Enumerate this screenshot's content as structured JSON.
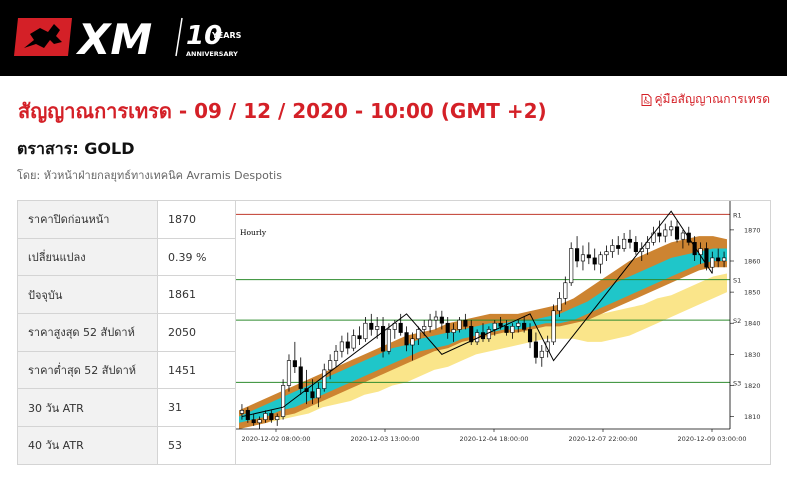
{
  "brand": {
    "logo_text": "XM",
    "anniversary_number": "10",
    "anniversary_years": "YEARS",
    "anniversary_label": "ANNIVERSARY"
  },
  "page": {
    "title": "สัญญาณการเทรด - 09 / 12 / 2020 - 10:00 (GMT +2)",
    "guide_link": "คู่มือสัญญาณการเทรด",
    "instrument": "ตราสาร: GOLD",
    "byline": "โดย: หัวหน้าฝ่ายกลยุทธ์ทางเทคนิค Avramis Despotis"
  },
  "table": {
    "rows": [
      {
        "label": "ราคาปิดก่อนหน้า",
        "value": "1870"
      },
      {
        "label": "เปลี่ยนแปลง",
        "value": "0.39 %"
      },
      {
        "label": "ปัจจุบัน",
        "value": "1861"
      },
      {
        "label": "ราคาสูงสุด 52 สัปดาห์",
        "value": "2050"
      },
      {
        "label": "ราคาต่ำสุด 52 สัปดาห์",
        "value": "1451"
      },
      {
        "label": "30 วัน ATR",
        "value": "31"
      },
      {
        "label": "40 วัน ATR",
        "value": "53"
      }
    ]
  },
  "chart_data": {
    "type": "candlestick",
    "timeframe_label": "Hourly",
    "y_ticks": [
      1870,
      1860,
      1850,
      1840,
      1830,
      1820,
      1810
    ],
    "y_range": [
      1806,
      1878
    ],
    "x_tick_labels": [
      "2020-12-02 08:00:00",
      "2020-12-03 13:00:00",
      "2020-12-04 18:00:00",
      "2020-12-07 22:00:00",
      "2020-12-09 03:00:00"
    ],
    "levels": [
      {
        "name": "R1",
        "value": 1875,
        "color": "#c0392b"
      },
      {
        "name": "S1",
        "value": 1854,
        "color": "#2e8b2e"
      },
      {
        "name": "S2",
        "value": 1841,
        "color": "#2e8b2e"
      },
      {
        "name": "S3",
        "value": 1821,
        "color": "#2e8b2e"
      }
    ],
    "colors": {
      "up": "#ffffff",
      "down": "#000000",
      "band_inner": "#1fc6c9",
      "band_mid": "#cd8431",
      "band_outer": "#fae58a"
    },
    "candles": [
      {
        "o": 1811,
        "h": 1814,
        "l": 1809,
        "c": 1812
      },
      {
        "o": 1812,
        "h": 1813,
        "l": 1808,
        "c": 1809
      },
      {
        "o": 1809,
        "h": 1811,
        "l": 1807,
        "c": 1808
      },
      {
        "o": 1808,
        "h": 1810,
        "l": 1806,
        "c": 1809
      },
      {
        "o": 1809,
        "h": 1812,
        "l": 1808,
        "c": 1811
      },
      {
        "o": 1811,
        "h": 1812,
        "l": 1808,
        "c": 1809
      },
      {
        "o": 1809,
        "h": 1811,
        "l": 1807,
        "c": 1810
      },
      {
        "o": 1810,
        "h": 1822,
        "l": 1809,
        "c": 1820
      },
      {
        "o": 1820,
        "h": 1830,
        "l": 1818,
        "c": 1828
      },
      {
        "o": 1828,
        "h": 1834,
        "l": 1824,
        "c": 1826
      },
      {
        "o": 1826,
        "h": 1829,
        "l": 1817,
        "c": 1819
      },
      {
        "o": 1819,
        "h": 1825,
        "l": 1814,
        "c": 1818
      },
      {
        "o": 1818,
        "h": 1822,
        "l": 1814,
        "c": 1816
      },
      {
        "o": 1816,
        "h": 1821,
        "l": 1813,
        "c": 1819
      },
      {
        "o": 1819,
        "h": 1827,
        "l": 1818,
        "c": 1825
      },
      {
        "o": 1825,
        "h": 1830,
        "l": 1822,
        "c": 1828
      },
      {
        "o": 1828,
        "h": 1833,
        "l": 1826,
        "c": 1831
      },
      {
        "o": 1831,
        "h": 1836,
        "l": 1829,
        "c": 1834
      },
      {
        "o": 1834,
        "h": 1837,
        "l": 1830,
        "c": 1832
      },
      {
        "o": 1832,
        "h": 1838,
        "l": 1831,
        "c": 1836
      },
      {
        "o": 1836,
        "h": 1839,
        "l": 1833,
        "c": 1835
      },
      {
        "o": 1835,
        "h": 1842,
        "l": 1834,
        "c": 1840
      },
      {
        "o": 1840,
        "h": 1843,
        "l": 1836,
        "c": 1838
      },
      {
        "o": 1838,
        "h": 1842,
        "l": 1835,
        "c": 1839
      },
      {
        "o": 1839,
        "h": 1842,
        "l": 1829,
        "c": 1831
      },
      {
        "o": 1831,
        "h": 1840,
        "l": 1830,
        "c": 1838
      },
      {
        "o": 1838,
        "h": 1841,
        "l": 1835,
        "c": 1840
      },
      {
        "o": 1840,
        "h": 1843,
        "l": 1836,
        "c": 1837
      },
      {
        "o": 1837,
        "h": 1839,
        "l": 1831,
        "c": 1833
      },
      {
        "o": 1833,
        "h": 1837,
        "l": 1828,
        "c": 1835
      },
      {
        "o": 1835,
        "h": 1839,
        "l": 1833,
        "c": 1838
      },
      {
        "o": 1838,
        "h": 1841,
        "l": 1836,
        "c": 1839
      },
      {
        "o": 1839,
        "h": 1843,
        "l": 1837,
        "c": 1841
      },
      {
        "o": 1841,
        "h": 1844,
        "l": 1838,
        "c": 1842
      },
      {
        "o": 1842,
        "h": 1844,
        "l": 1838,
        "c": 1840
      },
      {
        "o": 1840,
        "h": 1842,
        "l": 1835,
        "c": 1837
      },
      {
        "o": 1837,
        "h": 1840,
        "l": 1834,
        "c": 1838
      },
      {
        "o": 1838,
        "h": 1842,
        "l": 1837,
        "c": 1841
      },
      {
        "o": 1841,
        "h": 1843,
        "l": 1838,
        "c": 1839
      },
      {
        "o": 1839,
        "h": 1841,
        "l": 1833,
        "c": 1834
      },
      {
        "o": 1834,
        "h": 1838,
        "l": 1833,
        "c": 1837
      },
      {
        "o": 1837,
        "h": 1840,
        "l": 1834,
        "c": 1835
      },
      {
        "o": 1835,
        "h": 1839,
        "l": 1834,
        "c": 1838
      },
      {
        "o": 1838,
        "h": 1841,
        "l": 1836,
        "c": 1840
      },
      {
        "o": 1840,
        "h": 1842,
        "l": 1838,
        "c": 1839
      },
      {
        "o": 1839,
        "h": 1841,
        "l": 1836,
        "c": 1837
      },
      {
        "o": 1837,
        "h": 1840,
        "l": 1835,
        "c": 1839
      },
      {
        "o": 1839,
        "h": 1841,
        "l": 1837,
        "c": 1840
      },
      {
        "o": 1840,
        "h": 1842,
        "l": 1837,
        "c": 1838
      },
      {
        "o": 1838,
        "h": 1840,
        "l": 1832,
        "c": 1834
      },
      {
        "o": 1834,
        "h": 1837,
        "l": 1827,
        "c": 1829
      },
      {
        "o": 1829,
        "h": 1833,
        "l": 1826,
        "c": 1831
      },
      {
        "o": 1831,
        "h": 1836,
        "l": 1829,
        "c": 1834
      },
      {
        "o": 1834,
        "h": 1846,
        "l": 1833,
        "c": 1844
      },
      {
        "o": 1844,
        "h": 1850,
        "l": 1842,
        "c": 1848
      },
      {
        "o": 1848,
        "h": 1855,
        "l": 1846,
        "c": 1853
      },
      {
        "o": 1853,
        "h": 1866,
        "l": 1852,
        "c": 1864
      },
      {
        "o": 1864,
        "h": 1868,
        "l": 1858,
        "c": 1860
      },
      {
        "o": 1860,
        "h": 1865,
        "l": 1857,
        "c": 1862
      },
      {
        "o": 1862,
        "h": 1866,
        "l": 1859,
        "c": 1861
      },
      {
        "o": 1861,
        "h": 1864,
        "l": 1857,
        "c": 1859
      },
      {
        "o": 1859,
        "h": 1863,
        "l": 1856,
        "c": 1862
      },
      {
        "o": 1862,
        "h": 1865,
        "l": 1860,
        "c": 1863
      },
      {
        "o": 1863,
        "h": 1867,
        "l": 1861,
        "c": 1865
      },
      {
        "o": 1865,
        "h": 1868,
        "l": 1862,
        "c": 1864
      },
      {
        "o": 1864,
        "h": 1869,
        "l": 1863,
        "c": 1867
      },
      {
        "o": 1867,
        "h": 1870,
        "l": 1864,
        "c": 1866
      },
      {
        "o": 1866,
        "h": 1868,
        "l": 1862,
        "c": 1863
      },
      {
        "o": 1863,
        "h": 1866,
        "l": 1860,
        "c": 1864
      },
      {
        "o": 1864,
        "h": 1868,
        "l": 1862,
        "c": 1866
      },
      {
        "o": 1866,
        "h": 1871,
        "l": 1865,
        "c": 1869
      },
      {
        "o": 1869,
        "h": 1873,
        "l": 1866,
        "c": 1868
      },
      {
        "o": 1868,
        "h": 1872,
        "l": 1866,
        "c": 1870
      },
      {
        "o": 1870,
        "h": 1873,
        "l": 1868,
        "c": 1871
      },
      {
        "o": 1871,
        "h": 1873,
        "l": 1866,
        "c": 1867
      },
      {
        "o": 1867,
        "h": 1870,
        "l": 1864,
        "c": 1869
      },
      {
        "o": 1869,
        "h": 1871,
        "l": 1865,
        "c": 1866
      },
      {
        "o": 1866,
        "h": 1868,
        "l": 1860,
        "c": 1862
      },
      {
        "o": 1862,
        "h": 1866,
        "l": 1859,
        "c": 1864
      },
      {
        "o": 1864,
        "h": 1866,
        "l": 1857,
        "c": 1858
      },
      {
        "o": 1858,
        "h": 1863,
        "l": 1856,
        "c": 1861
      },
      {
        "o": 1861,
        "h": 1864,
        "l": 1858,
        "c": 1860
      },
      {
        "o": 1860,
        "h": 1863,
        "l": 1858,
        "c": 1861
      }
    ],
    "bands": {
      "outer_top": [
        1809,
        1811,
        1812,
        1814,
        1815,
        1817,
        1818,
        1820,
        1821,
        1823,
        1825,
        1826,
        1828,
        1830,
        1831,
        1833,
        1835,
        1836,
        1838,
        1839,
        1840,
        1841,
        1842,
        1842,
        1842,
        1842,
        1843,
        1844,
        1845,
        1846,
        1848,
        1849,
        1851,
        1853,
        1855,
        1856
      ],
      "outer_bottom": [
        1806,
        1807,
        1808,
        1809,
        1810,
        1811,
        1813,
        1814,
        1815,
        1817,
        1818,
        1820,
        1821,
        1823,
        1825,
        1826,
        1828,
        1830,
        1831,
        1832,
        1833,
        1834,
        1835,
        1835,
        1835,
        1834,
        1834,
        1835,
        1836,
        1838,
        1840,
        1842,
        1844,
        1846,
        1848,
        1850
      ],
      "orange_top": [
        1812,
        1814,
        1816,
        1818,
        1820,
        1822,
        1824,
        1826,
        1828,
        1830,
        1832,
        1834,
        1836,
        1837,
        1838,
        1840,
        1841,
        1842,
        1843,
        1843,
        1843,
        1844,
        1845,
        1846,
        1848,
        1851,
        1854,
        1857,
        1860,
        1862,
        1864,
        1866,
        1867,
        1868,
        1868,
        1867
      ],
      "orange_bottom": [
        1806,
        1807,
        1808,
        1810,
        1811,
        1813,
        1815,
        1817,
        1819,
        1821,
        1823,
        1825,
        1827,
        1829,
        1831,
        1832,
        1834,
        1835,
        1836,
        1837,
        1837,
        1838,
        1839,
        1839,
        1840,
        1841,
        1843,
        1845,
        1847,
        1849,
        1851,
        1853,
        1855,
        1857,
        1858,
        1858
      ],
      "cyan_top": [
        1810,
        1812,
        1814,
        1816,
        1818,
        1820,
        1822,
        1824,
        1826,
        1828,
        1830,
        1832,
        1833,
        1835,
        1836,
        1837,
        1838,
        1839,
        1840,
        1840,
        1841,
        1841,
        1842,
        1843,
        1845,
        1847,
        1850,
        1853,
        1855,
        1857,
        1859,
        1861,
        1862,
        1863,
        1864,
        1864
      ],
      "cyan_bottom": [
        1808,
        1809,
        1810,
        1812,
        1813,
        1815,
        1817,
        1819,
        1821,
        1823,
        1825,
        1827,
        1829,
        1831,
        1832,
        1833,
        1835,
        1836,
        1837,
        1838,
        1838,
        1839,
        1840,
        1840,
        1841,
        1843,
        1845,
        1847,
        1849,
        1851,
        1853,
        1855,
        1857,
        1859,
        1860,
        1860
      ]
    },
    "zigzag": [
      {
        "i": 0,
        "v": 1810
      },
      {
        "i": 7,
        "v": 1813
      },
      {
        "i": 28,
        "v": 1843
      },
      {
        "i": 34,
        "v": 1830
      },
      {
        "i": 49,
        "v": 1843
      },
      {
        "i": 53,
        "v": 1828
      },
      {
        "i": 73,
        "v": 1876
      },
      {
        "i": 80,
        "v": 1856
      }
    ]
  }
}
